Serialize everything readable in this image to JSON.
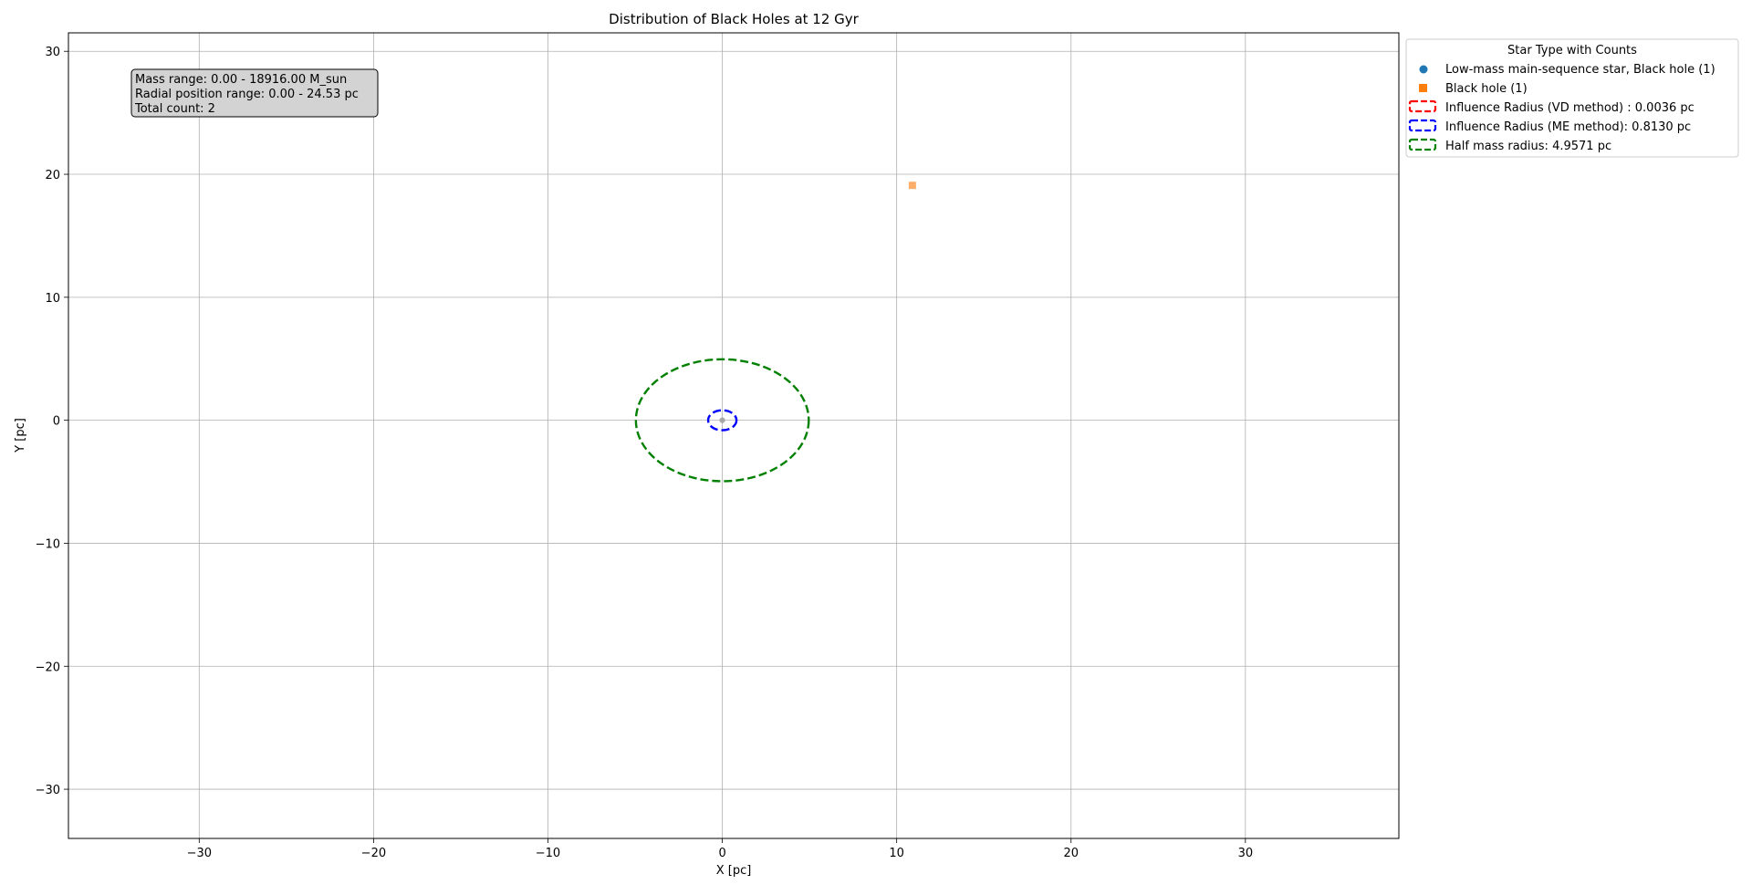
{
  "chart_data": {
    "type": "scatter",
    "title": "Distribution of Black Holes at 12 Gyr",
    "xlabel": "X [pc]",
    "ylabel": "Y [pc]",
    "xlim": [
      -37.5,
      38.8
    ],
    "ylim": [
      -34,
      31.5
    ],
    "grid": true,
    "x_ticks": [
      -30,
      -20,
      -10,
      0,
      10,
      20,
      30
    ],
    "y_ticks": [
      -30,
      -20,
      -10,
      0,
      10,
      20,
      30
    ],
    "x_tick_labels": [
      "−30",
      "−20",
      "−10",
      "0",
      "10",
      "20",
      "30"
    ],
    "y_tick_labels": [
      "−30",
      "−20",
      "−10",
      "0",
      "10",
      "20",
      "30"
    ],
    "series": [
      {
        "name": "Low-mass main-sequence star, Black hole (1)",
        "marker": "circle",
        "color": "#1f77b4",
        "plot_color": "#a0a0a0",
        "points": [
          {
            "x": 0.0,
            "y": 0.0
          }
        ]
      },
      {
        "name": "Black hole (1)",
        "marker": "square",
        "color": "#ff7f0e",
        "plot_color": "#ffa050",
        "points": [
          {
            "x": 10.9,
            "y": 19.1
          }
        ]
      }
    ],
    "circles": [
      {
        "name": "Influence Radius (VD method) : 0.0036 pc",
        "radius": 0.0036,
        "color": "#ff0000"
      },
      {
        "name": "Influence Radius (ME method): 0.8130 pc",
        "radius": 0.813,
        "color": "#0000ff"
      },
      {
        "name": "Half mass radius: 4.9571 pc",
        "radius": 4.9571,
        "color": "#008000"
      }
    ],
    "legend": {
      "title": "Star Type with Counts",
      "placement": "outside top-right"
    },
    "annotation": {
      "lines": [
        "Mass range: 0.00 - 18916.00 M_sun",
        "Radial position range: 0.00 - 24.53 pc",
        "Total count: 2"
      ],
      "placement": "top-left"
    }
  }
}
